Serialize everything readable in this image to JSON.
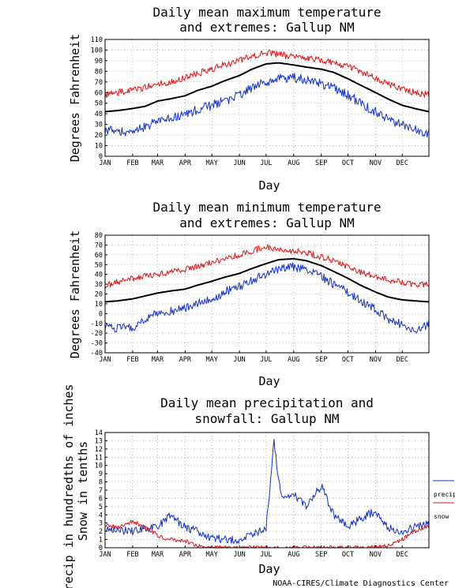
{
  "credit": "NOAA-CIRES/Climate Diagnostics Center",
  "months": [
    "JAN",
    "FEB",
    "MAR",
    "APR",
    "MAY",
    "JUN",
    "JUL",
    "AUG",
    "SEP",
    "OCT",
    "NOV",
    "DEC"
  ],
  "colors": {
    "mean": "#000000",
    "max_extreme": "#e01010",
    "min_extreme": "#1030d0",
    "grid": "#888888"
  },
  "chart_data": [
    {
      "type": "line",
      "title_line1": "Daily mean maximum temperature",
      "title_line2": "and extremes: Gallup NM",
      "xlabel": "Day",
      "ylabel": "Degrees Fahrenheit",
      "ylim": [
        0,
        110
      ],
      "yticks": [
        "0",
        "10",
        "20",
        "30",
        "40",
        "50",
        "60",
        "70",
        "80",
        "90",
        "100",
        "110"
      ],
      "grid": true,
      "x": [
        1,
        15,
        32,
        46,
        60,
        74,
        91,
        105,
        121,
        135,
        152,
        166,
        182,
        196,
        213,
        227,
        244,
        258,
        274,
        288,
        305,
        319,
        335,
        349,
        365
      ],
      "series": [
        {
          "role": "mean",
          "values": [
            42,
            43,
            45,
            47,
            52,
            54,
            57,
            62,
            66,
            71,
            76,
            82,
            87,
            88,
            86,
            84,
            82,
            79,
            73,
            67,
            60,
            54,
            48,
            45,
            42
          ]
        },
        {
          "role": "highest",
          "values": [
            58,
            60,
            62,
            65,
            68,
            70,
            74,
            78,
            82,
            86,
            90,
            94,
            98,
            96,
            94,
            93,
            91,
            88,
            84,
            80,
            74,
            68,
            63,
            60,
            58
          ]
        },
        {
          "role": "lowest",
          "values": [
            25,
            23,
            22,
            28,
            33,
            35,
            40,
            44,
            48,
            52,
            58,
            64,
            70,
            73,
            74,
            72,
            68,
            64,
            58,
            50,
            42,
            35,
            30,
            25,
            20
          ]
        }
      ]
    },
    {
      "type": "line",
      "title_line1": "Daily mean minimum temperature",
      "title_line2": "and extremes: Gallup NM",
      "xlabel": "Day",
      "ylabel": "Degrees Fahrenheit",
      "ylim": [
        -40,
        80
      ],
      "yticks": [
        "-40",
        "-30",
        "-20",
        "-10",
        "0",
        "10",
        "20",
        "30",
        "40",
        "50",
        "60",
        "70",
        "80"
      ],
      "grid": true,
      "x": [
        1,
        15,
        32,
        46,
        60,
        74,
        91,
        105,
        121,
        135,
        152,
        166,
        182,
        196,
        213,
        227,
        244,
        258,
        274,
        288,
        305,
        319,
        335,
        349,
        365
      ],
      "series": [
        {
          "role": "mean",
          "values": [
            12,
            13,
            15,
            18,
            21,
            23,
            25,
            29,
            33,
            37,
            41,
            46,
            51,
            55,
            56,
            54,
            49,
            43,
            36,
            29,
            22,
            17,
            14,
            13,
            12
          ]
        },
        {
          "role": "highest",
          "values": [
            28,
            32,
            36,
            38,
            40,
            42,
            45,
            48,
            52,
            56,
            60,
            64,
            68,
            66,
            64,
            62,
            58,
            54,
            48,
            42,
            38,
            34,
            32,
            30,
            30
          ]
        },
        {
          "role": "lowest",
          "values": [
            -12,
            -15,
            -14,
            -5,
            0,
            2,
            6,
            10,
            15,
            22,
            28,
            34,
            40,
            46,
            48,
            44,
            38,
            30,
            22,
            14,
            4,
            -5,
            -12,
            -20,
            -10
          ]
        }
      ]
    },
    {
      "type": "line",
      "title_line1": "Daily mean precipitation and",
      "title_line2": "snowfall: Gallup NM",
      "xlabel": "Day",
      "ylabel_line1": "Precip in hundredths of inches",
      "ylabel_line2": "Snow in tenths",
      "ylim": [
        0,
        14
      ],
      "yticks": [
        "0",
        "1",
        "2",
        "3",
        "4",
        "5",
        "6",
        "7",
        "8",
        "9",
        "10",
        "11",
        "12",
        "13",
        "14"
      ],
      "grid": true,
      "legend": [
        {
          "name": "precip",
          "role": "precip"
        },
        {
          "name": "snow",
          "role": "snow"
        }
      ],
      "legend_position": "right",
      "x": [
        1,
        15,
        32,
        46,
        60,
        74,
        91,
        105,
        121,
        135,
        152,
        166,
        182,
        191,
        196,
        200,
        213,
        227,
        244,
        258,
        274,
        288,
        305,
        319,
        335,
        349,
        365
      ],
      "series": [
        {
          "role": "precip",
          "values": [
            2.5,
            2.2,
            2.0,
            2.3,
            2.5,
            4.0,
            2.5,
            2.0,
            1.2,
            1.0,
            1.0,
            1.5,
            2.5,
            13.0,
            8.0,
            6.0,
            6.5,
            5.0,
            7.5,
            4.0,
            2.5,
            3.5,
            4.5,
            2.5,
            2.0,
            2.5,
            3.0
          ]
        },
        {
          "role": "snow",
          "values": [
            2.8,
            2.4,
            3.2,
            2.5,
            1.5,
            1.0,
            0.8,
            0.2,
            0.0,
            0.0,
            0.0,
            0.0,
            0.0,
            0.0,
            0.0,
            0.0,
            0.0,
            0.0,
            0.0,
            0.0,
            0.0,
            0.0,
            0.1,
            0.3,
            1.0,
            2.0,
            2.6
          ]
        }
      ]
    }
  ]
}
